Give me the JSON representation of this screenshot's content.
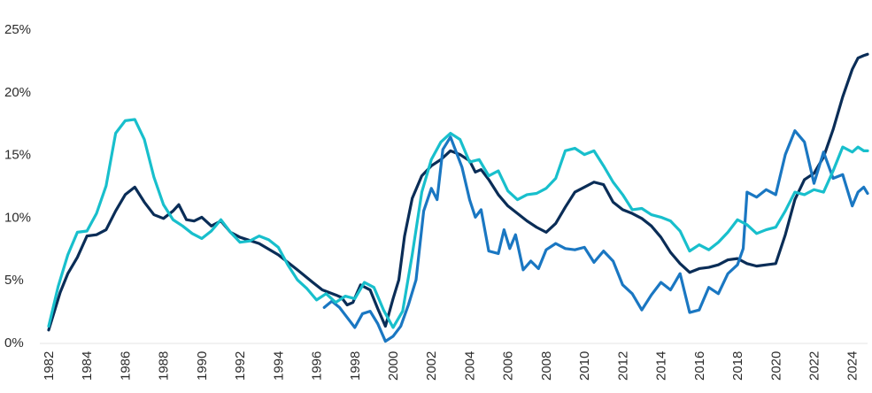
{
  "chart_data": {
    "type": "line",
    "title": "",
    "xlabel": "",
    "ylabel": "",
    "xlim": [
      1982,
      2024.8
    ],
    "ylim": [
      0,
      25
    ],
    "grid": false,
    "legend": "none",
    "y_ticks": [
      0,
      5,
      10,
      15,
      20,
      25
    ],
    "y_tick_labels": [
      "0%",
      "5%",
      "10%",
      "15%",
      "20%",
      "25%"
    ],
    "x_ticks": [
      1982,
      1984,
      1986,
      1988,
      1990,
      1992,
      1994,
      1996,
      1998,
      2000,
      2002,
      2004,
      2006,
      2008,
      2010,
      2012,
      2014,
      2016,
      2018,
      2020,
      2022,
      2024
    ],
    "x_tick_labels": [
      "1982",
      "1984",
      "1986",
      "1988",
      "1990",
      "1992",
      "1994",
      "1996",
      "1998",
      "2000",
      "2002",
      "2004",
      "2006",
      "2008",
      "2010",
      "2012",
      "2014",
      "2016",
      "2018",
      "2020",
      "2022",
      "2024"
    ],
    "series": [
      {
        "color": "#0a2d57",
        "points": [
          [
            1982.0,
            1.0
          ],
          [
            1982.3,
            2.5
          ],
          [
            1982.6,
            4.0
          ],
          [
            1983.0,
            5.5
          ],
          [
            1983.5,
            6.8
          ],
          [
            1984.0,
            8.5
          ],
          [
            1984.5,
            8.6
          ],
          [
            1985.0,
            9.0
          ],
          [
            1985.5,
            10.5
          ],
          [
            1986.0,
            11.8
          ],
          [
            1986.5,
            12.4
          ],
          [
            1987.0,
            11.2
          ],
          [
            1987.5,
            10.2
          ],
          [
            1988.0,
            9.9
          ],
          [
            1988.5,
            10.5
          ],
          [
            1988.8,
            11.0
          ],
          [
            1989.2,
            9.8
          ],
          [
            1989.6,
            9.7
          ],
          [
            1990.0,
            10.0
          ],
          [
            1990.5,
            9.3
          ],
          [
            1991.0,
            9.7
          ],
          [
            1991.5,
            8.8
          ],
          [
            1992.0,
            8.4
          ],
          [
            1993.0,
            7.9
          ],
          [
            1994.0,
            7.0
          ],
          [
            1995.0,
            5.8
          ],
          [
            1995.8,
            4.8
          ],
          [
            1996.3,
            4.2
          ],
          [
            1997.0,
            3.8
          ],
          [
            1997.3,
            3.6
          ],
          [
            1997.6,
            3.0
          ],
          [
            1997.9,
            3.2
          ],
          [
            1998.3,
            4.6
          ],
          [
            1998.8,
            4.2
          ],
          [
            1999.2,
            2.7
          ],
          [
            1999.6,
            1.3
          ],
          [
            2000.0,
            3.5
          ],
          [
            2000.3,
            5.0
          ],
          [
            2000.6,
            8.5
          ],
          [
            2001.0,
            11.5
          ],
          [
            2001.5,
            13.3
          ],
          [
            2002.0,
            14.1
          ],
          [
            2002.5,
            14.6
          ],
          [
            2003.0,
            15.3
          ],
          [
            2003.5,
            15.0
          ],
          [
            2004.0,
            14.5
          ],
          [
            2004.3,
            13.6
          ],
          [
            2004.6,
            13.8
          ],
          [
            2005.0,
            13.0
          ],
          [
            2005.5,
            11.8
          ],
          [
            2006.0,
            10.9
          ],
          [
            2006.5,
            10.3
          ],
          [
            2007.0,
            9.7
          ],
          [
            2007.5,
            9.2
          ],
          [
            2008.0,
            8.8
          ],
          [
            2008.5,
            9.5
          ],
          [
            2009.0,
            10.8
          ],
          [
            2009.5,
            12.0
          ],
          [
            2010.0,
            12.4
          ],
          [
            2010.5,
            12.8
          ],
          [
            2011.0,
            12.6
          ],
          [
            2011.5,
            11.2
          ],
          [
            2012.0,
            10.6
          ],
          [
            2012.5,
            10.3
          ],
          [
            2013.0,
            9.9
          ],
          [
            2013.5,
            9.3
          ],
          [
            2014.0,
            8.4
          ],
          [
            2014.5,
            7.2
          ],
          [
            2015.0,
            6.3
          ],
          [
            2015.5,
            5.6
          ],
          [
            2016.0,
            5.9
          ],
          [
            2016.5,
            6.0
          ],
          [
            2017.0,
            6.2
          ],
          [
            2017.5,
            6.6
          ],
          [
            2018.0,
            6.7
          ],
          [
            2018.5,
            6.3
          ],
          [
            2019.0,
            6.1
          ],
          [
            2019.5,
            6.2
          ],
          [
            2020.0,
            6.3
          ],
          [
            2020.5,
            8.6
          ],
          [
            2021.0,
            11.4
          ],
          [
            2021.5,
            13.0
          ],
          [
            2022.0,
            13.5
          ],
          [
            2022.5,
            14.8
          ],
          [
            2023.0,
            17.0
          ],
          [
            2023.5,
            19.6
          ],
          [
            2024.0,
            21.8
          ],
          [
            2024.3,
            22.7
          ],
          [
            2024.6,
            22.9
          ],
          [
            2024.8,
            23.0
          ]
        ]
      },
      {
        "color": "#1a77c2",
        "points": [
          [
            1996.4,
            2.8
          ],
          [
            1996.8,
            3.3
          ],
          [
            1997.2,
            2.8
          ],
          [
            1997.6,
            2.0
          ],
          [
            1998.0,
            1.2
          ],
          [
            1998.4,
            2.3
          ],
          [
            1998.8,
            2.5
          ],
          [
            1999.2,
            1.5
          ],
          [
            1999.6,
            0.1
          ],
          [
            2000.0,
            0.5
          ],
          [
            2000.4,
            1.3
          ],
          [
            2000.8,
            3.0
          ],
          [
            2001.2,
            5.0
          ],
          [
            2001.6,
            10.5
          ],
          [
            2002.0,
            12.3
          ],
          [
            2002.3,
            11.4
          ],
          [
            2002.6,
            15.4
          ],
          [
            2003.0,
            16.4
          ],
          [
            2003.3,
            15.2
          ],
          [
            2003.6,
            14.0
          ],
          [
            2004.0,
            11.4
          ],
          [
            2004.3,
            10.0
          ],
          [
            2004.6,
            10.6
          ],
          [
            2005.0,
            7.3
          ],
          [
            2005.5,
            7.1
          ],
          [
            2005.8,
            9.0
          ],
          [
            2006.1,
            7.5
          ],
          [
            2006.4,
            8.6
          ],
          [
            2006.8,
            5.8
          ],
          [
            2007.2,
            6.5
          ],
          [
            2007.6,
            5.9
          ],
          [
            2008.0,
            7.4
          ],
          [
            2008.5,
            7.9
          ],
          [
            2009.0,
            7.5
          ],
          [
            2009.5,
            7.4
          ],
          [
            2010.0,
            7.6
          ],
          [
            2010.5,
            6.4
          ],
          [
            2011.0,
            7.3
          ],
          [
            2011.5,
            6.5
          ],
          [
            2012.0,
            4.6
          ],
          [
            2012.5,
            3.9
          ],
          [
            2013.0,
            2.6
          ],
          [
            2013.5,
            3.8
          ],
          [
            2014.0,
            4.8
          ],
          [
            2014.5,
            4.2
          ],
          [
            2015.0,
            5.5
          ],
          [
            2015.5,
            2.4
          ],
          [
            2016.0,
            2.6
          ],
          [
            2016.5,
            4.4
          ],
          [
            2017.0,
            3.9
          ],
          [
            2017.5,
            5.5
          ],
          [
            2018.0,
            6.2
          ],
          [
            2018.3,
            7.5
          ],
          [
            2018.5,
            12.0
          ],
          [
            2019.0,
            11.6
          ],
          [
            2019.5,
            12.2
          ],
          [
            2020.0,
            11.8
          ],
          [
            2020.5,
            15.0
          ],
          [
            2021.0,
            16.9
          ],
          [
            2021.5,
            16.0
          ],
          [
            2022.0,
            12.7
          ],
          [
            2022.5,
            15.2
          ],
          [
            2023.0,
            13.1
          ],
          [
            2023.5,
            13.4
          ],
          [
            2024.0,
            10.9
          ],
          [
            2024.3,
            12.0
          ],
          [
            2024.6,
            12.4
          ],
          [
            2024.8,
            11.9
          ]
        ]
      },
      {
        "color": "#18bfcc",
        "points": [
          [
            1982.0,
            1.3
          ],
          [
            1982.5,
            4.5
          ],
          [
            1983.0,
            7.0
          ],
          [
            1983.5,
            8.8
          ],
          [
            1984.0,
            8.9
          ],
          [
            1984.5,
            10.3
          ],
          [
            1985.0,
            12.5
          ],
          [
            1985.5,
            16.7
          ],
          [
            1986.0,
            17.7
          ],
          [
            1986.5,
            17.8
          ],
          [
            1987.0,
            16.2
          ],
          [
            1987.5,
            13.2
          ],
          [
            1988.0,
            11.0
          ],
          [
            1988.5,
            9.8
          ],
          [
            1989.0,
            9.3
          ],
          [
            1989.5,
            8.7
          ],
          [
            1990.0,
            8.3
          ],
          [
            1990.5,
            8.9
          ],
          [
            1991.0,
            9.8
          ],
          [
            1991.5,
            8.8
          ],
          [
            1992.0,
            8.0
          ],
          [
            1992.5,
            8.1
          ],
          [
            1993.0,
            8.5
          ],
          [
            1993.5,
            8.2
          ],
          [
            1994.0,
            7.6
          ],
          [
            1994.5,
            6.2
          ],
          [
            1995.0,
            5.0
          ],
          [
            1995.5,
            4.3
          ],
          [
            1996.0,
            3.4
          ],
          [
            1996.5,
            3.9
          ],
          [
            1997.0,
            3.2
          ],
          [
            1997.5,
            3.7
          ],
          [
            1998.0,
            3.5
          ],
          [
            1998.5,
            4.8
          ],
          [
            1999.0,
            4.4
          ],
          [
            1999.5,
            2.6
          ],
          [
            2000.0,
            1.2
          ],
          [
            2000.5,
            2.5
          ],
          [
            2001.0,
            7.0
          ],
          [
            2001.5,
            12.0
          ],
          [
            2002.0,
            14.6
          ],
          [
            2002.5,
            16.0
          ],
          [
            2003.0,
            16.7
          ],
          [
            2003.5,
            16.2
          ],
          [
            2004.0,
            14.4
          ],
          [
            2004.5,
            14.6
          ],
          [
            2005.0,
            13.3
          ],
          [
            2005.5,
            13.7
          ],
          [
            2006.0,
            12.1
          ],
          [
            2006.5,
            11.4
          ],
          [
            2007.0,
            11.8
          ],
          [
            2007.5,
            11.9
          ],
          [
            2008.0,
            12.3
          ],
          [
            2008.5,
            13.1
          ],
          [
            2009.0,
            15.3
          ],
          [
            2009.5,
            15.5
          ],
          [
            2010.0,
            15.0
          ],
          [
            2010.5,
            15.3
          ],
          [
            2011.0,
            14.1
          ],
          [
            2011.5,
            12.8
          ],
          [
            2012.0,
            11.8
          ],
          [
            2012.5,
            10.6
          ],
          [
            2013.0,
            10.7
          ],
          [
            2013.5,
            10.2
          ],
          [
            2014.0,
            10.0
          ],
          [
            2014.5,
            9.7
          ],
          [
            2015.0,
            8.9
          ],
          [
            2015.5,
            7.3
          ],
          [
            2016.0,
            7.8
          ],
          [
            2016.5,
            7.4
          ],
          [
            2017.0,
            8.0
          ],
          [
            2017.5,
            8.8
          ],
          [
            2018.0,
            9.8
          ],
          [
            2018.5,
            9.4
          ],
          [
            2019.0,
            8.7
          ],
          [
            2019.5,
            9.0
          ],
          [
            2020.0,
            9.2
          ],
          [
            2020.5,
            10.5
          ],
          [
            2021.0,
            12.0
          ],
          [
            2021.5,
            11.8
          ],
          [
            2022.0,
            12.2
          ],
          [
            2022.5,
            12.0
          ],
          [
            2023.0,
            13.7
          ],
          [
            2023.5,
            15.6
          ],
          [
            2024.0,
            15.2
          ],
          [
            2024.3,
            15.6
          ],
          [
            2024.6,
            15.3
          ],
          [
            2024.8,
            15.3
          ]
        ]
      }
    ]
  }
}
